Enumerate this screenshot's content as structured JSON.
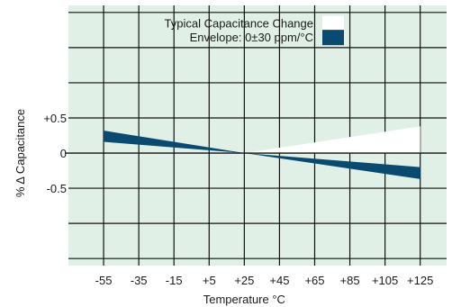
{
  "chart_data": {
    "type": "area",
    "xlabel": "Temperature °C",
    "ylabel": "% Δ Capacitance",
    "x_ticks": [
      -55,
      -35,
      -15,
      5,
      25,
      45,
      65,
      85,
      105,
      125
    ],
    "x_tick_labels": [
      "-55",
      "-35",
      "-15",
      "+5",
      "+25",
      "+45",
      "+65",
      "+85",
      "+105",
      "+125"
    ],
    "y_tick_labels": [
      {
        "value": 0.5,
        "label": "+0.5"
      },
      {
        "value": 0,
        "label": "0"
      },
      {
        "value": -0.5,
        "label": "-0.5"
      }
    ],
    "xlim": [
      -75,
      140
    ],
    "ylim": [
      -1.6,
      2.1
    ],
    "grid": true,
    "background_color": "#e1f0e6",
    "series": [
      {
        "name": "Typical Capacitance Change",
        "color": "#ffffff",
        "upper": [
          {
            "x": -55,
            "y": -0.3
          },
          {
            "x": 25,
            "y": 0
          },
          {
            "x": 125,
            "y": 0.38
          }
        ],
        "lower": [
          {
            "x": -55,
            "y": -0.3
          },
          {
            "x": 25,
            "y": 0
          },
          {
            "x": 125,
            "y": 0
          }
        ]
      },
      {
        "name": "Envelope: 0±30 ppm/°C",
        "color": "#0a4a70",
        "upper": [
          {
            "x": -55,
            "y": 0.32
          },
          {
            "x": 25,
            "y": 0
          },
          {
            "x": 125,
            "y": -0.2
          }
        ],
        "lower": [
          {
            "x": -55,
            "y": 0.16
          },
          {
            "x": 25,
            "y": 0
          },
          {
            "x": 125,
            "y": -0.37
          }
        ]
      }
    ],
    "legend": {
      "position": "top-center"
    }
  }
}
